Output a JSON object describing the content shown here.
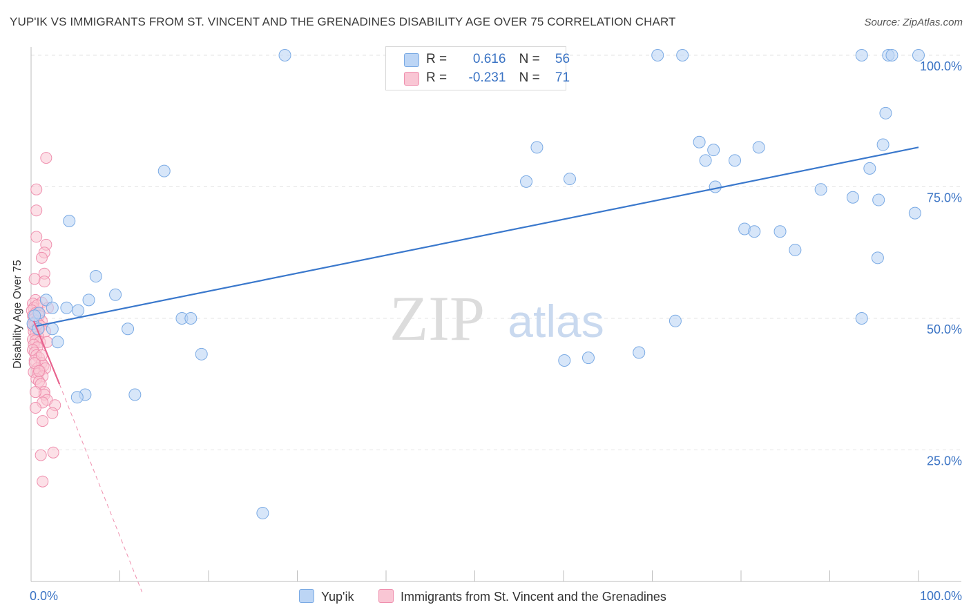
{
  "title": "YUP'IK VS IMMIGRANTS FROM ST. VINCENT AND THE GRENADINES DISABILITY AGE OVER 75 CORRELATION CHART",
  "source": "Source: ZipAtlas.com",
  "watermark": {
    "zip": "ZIP",
    "atlas": "atlas"
  },
  "colors": {
    "blue_fill": "#bcd5f5",
    "blue_stroke": "#7aaae4",
    "blue_line": "#3a78cc",
    "pink_fill": "#f9c6d4",
    "pink_stroke": "#ef8fae",
    "pink_line": "#e8638e",
    "axis_text": "#3a73c4",
    "grid": "#e3e3e3"
  },
  "legend": {
    "rows": [
      {
        "r_label": "R =",
        "r_value": "0.616",
        "n_label": "N =",
        "n_value": "56",
        "color": "#bcd5f5",
        "border": "#7aaae4"
      },
      {
        "r_label": "R =",
        "r_value": "-0.231",
        "n_label": "N =",
        "n_value": "71",
        "color": "#f9c6d4",
        "border": "#ef8fae"
      }
    ]
  },
  "bottom_legend": [
    {
      "label": "Yup'ik",
      "color": "#bcd5f5",
      "border": "#7aaae4"
    },
    {
      "label": "Immigrants from St. Vincent and the Grenadines",
      "color": "#f9c6d4",
      "border": "#ef8fae"
    }
  ],
  "chart_data": {
    "type": "scatter",
    "title": "YUP'IK VS IMMIGRANTS FROM ST. VINCENT AND THE GRENADINES DISABILITY AGE OVER 75 CORRELATION CHART",
    "xlabel": "",
    "ylabel": "Disability Age Over 75",
    "xlim": [
      0,
      100
    ],
    "ylim": [
      0,
      100
    ],
    "x_tick_labels": [
      "0.0%",
      "100.0%"
    ],
    "y_tick_labels": [
      "25.0%",
      "50.0%",
      "75.0%",
      "100.0%"
    ],
    "y_ticks": [
      25,
      50,
      75,
      100
    ],
    "grid": true,
    "legend_position": "top-center",
    "series": [
      {
        "name": "Yup'ik",
        "r": 0.616,
        "n": 56,
        "trend": {
          "x": [
            0.5,
            100
          ],
          "y": [
            48.5,
            82.5
          ],
          "style": "solid"
        },
        "points": [
          [
            28.6,
            100
          ],
          [
            70.6,
            100
          ],
          [
            73.4,
            100
          ],
          [
            93.6,
            100
          ],
          [
            96.6,
            100
          ],
          [
            97.0,
            100
          ],
          [
            100.0,
            100
          ],
          [
            96.3,
            89
          ],
          [
            96.0,
            83
          ],
          [
            82.0,
            82.5
          ],
          [
            75.3,
            83.5
          ],
          [
            76.9,
            82
          ],
          [
            57.0,
            82.5
          ],
          [
            76.0,
            80
          ],
          [
            79.3,
            80
          ],
          [
            94.5,
            78.5
          ],
          [
            15.0,
            78
          ],
          [
            60.7,
            76.5
          ],
          [
            55.8,
            76
          ],
          [
            77.1,
            75
          ],
          [
            89.0,
            74.5
          ],
          [
            92.6,
            73
          ],
          [
            95.5,
            72.5
          ],
          [
            99.6,
            70
          ],
          [
            4.3,
            68.5
          ],
          [
            80.4,
            67
          ],
          [
            81.5,
            66.5
          ],
          [
            84.4,
            66.5
          ],
          [
            86.1,
            63
          ],
          [
            95.4,
            61.5
          ],
          [
            7.3,
            58
          ],
          [
            9.5,
            54.5
          ],
          [
            1.7,
            53.5
          ],
          [
            6.5,
            53.5
          ],
          [
            2.4,
            52
          ],
          [
            4.0,
            52
          ],
          [
            5.3,
            51.5
          ],
          [
            0.9,
            51
          ],
          [
            0.2,
            49
          ],
          [
            0.4,
            50.5
          ],
          [
            17.0,
            50
          ],
          [
            18.0,
            50
          ],
          [
            72.6,
            49.5
          ],
          [
            93.6,
            50
          ],
          [
            0.8,
            48
          ],
          [
            2.4,
            48
          ],
          [
            10.9,
            48
          ],
          [
            3.0,
            45.5
          ],
          [
            19.2,
            43.2
          ],
          [
            68.5,
            43.5
          ],
          [
            60.1,
            42
          ],
          [
            62.8,
            42.5
          ],
          [
            6.1,
            35.5
          ],
          [
            5.2,
            35
          ],
          [
            11.7,
            35.5
          ],
          [
            26.1,
            13
          ]
        ]
      },
      {
        "name": "Immigrants from St. Vincent and the Grenadines",
        "r": -0.231,
        "n": 71,
        "trend": {
          "x": [
            0.3,
            3.2
          ],
          "y": [
            49.5,
            37.5
          ],
          "style": "solid",
          "extension": {
            "x": [
              3.2,
              12.5
            ],
            "y": [
              37.5,
              -2
            ]
          },
          "extension_style": "dashed"
        },
        "points": [
          [
            1.7,
            80.5
          ],
          [
            0.6,
            74.5
          ],
          [
            0.6,
            70.5
          ],
          [
            0.6,
            65.5
          ],
          [
            1.7,
            64
          ],
          [
            1.5,
            62.5
          ],
          [
            1.2,
            61.5
          ],
          [
            0.4,
            57.5
          ],
          [
            1.5,
            58.5
          ],
          [
            1.5,
            57
          ],
          [
            0.5,
            53.5
          ],
          [
            1.2,
            53
          ],
          [
            0.2,
            52.8
          ],
          [
            0.3,
            52
          ],
          [
            0.7,
            52.5
          ],
          [
            1.9,
            52
          ],
          [
            0.1,
            51.5
          ],
          [
            0.5,
            51
          ],
          [
            0.8,
            51
          ],
          [
            0.2,
            50.5
          ],
          [
            0.9,
            50.5
          ],
          [
            0.3,
            49.8
          ],
          [
            0.6,
            49.5
          ],
          [
            1.2,
            49.5
          ],
          [
            0.4,
            49
          ],
          [
            0.8,
            49
          ],
          [
            1.1,
            48.5
          ],
          [
            0.2,
            48.5
          ],
          [
            0.6,
            48
          ],
          [
            0.9,
            48
          ],
          [
            0.3,
            47.5
          ],
          [
            1.6,
            47.5
          ],
          [
            0.5,
            47
          ],
          [
            0.8,
            46.5
          ],
          [
            0.2,
            46
          ],
          [
            0.5,
            45.8
          ],
          [
            1.0,
            45.5
          ],
          [
            1.8,
            45.5
          ],
          [
            0.3,
            45
          ],
          [
            0.7,
            44.5
          ],
          [
            0.2,
            44
          ],
          [
            0.4,
            43.5
          ],
          [
            0.6,
            43
          ],
          [
            0.9,
            42.5
          ],
          [
            0.4,
            42
          ],
          [
            1.2,
            41.5
          ],
          [
            1.4,
            41
          ],
          [
            0.7,
            40.5
          ],
          [
            1.0,
            40
          ],
          [
            0.3,
            39.8
          ],
          [
            0.8,
            39.5
          ],
          [
            1.6,
            40.5
          ],
          [
            1.3,
            39
          ],
          [
            0.6,
            38.5
          ],
          [
            0.9,
            38
          ],
          [
            1.1,
            37.5
          ],
          [
            1.5,
            36
          ],
          [
            1.5,
            35.5
          ],
          [
            1.8,
            34.5
          ],
          [
            1.3,
            34
          ],
          [
            0.5,
            33
          ],
          [
            2.7,
            33.5
          ],
          [
            2.4,
            32
          ],
          [
            1.3,
            30.5
          ],
          [
            2.5,
            24.5
          ],
          [
            1.1,
            24
          ],
          [
            1.3,
            19
          ],
          [
            0.4,
            41.5
          ],
          [
            1.2,
            43
          ],
          [
            0.5,
            36
          ],
          [
            0.9,
            40
          ]
        ]
      }
    ]
  }
}
